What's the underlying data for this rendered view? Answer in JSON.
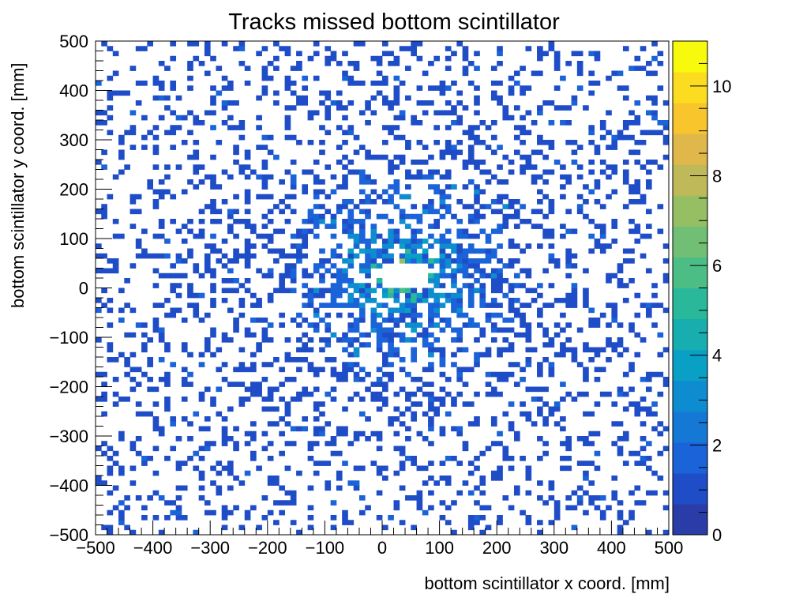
{
  "chart_data": {
    "type": "heatmap",
    "title": "Tracks missed bottom scintillator",
    "xlabel": "bottom scintillator x coord. [mm]",
    "ylabel": "bottom scintillator y coord. [mm]",
    "xlim": [
      -500,
      500
    ],
    "ylim": [
      -500,
      500
    ],
    "bins": {
      "nx": 100,
      "ny": 100,
      "bin_width_mm": 10
    },
    "empty_region": {
      "x": [
        0,
        80
      ],
      "y": [
        0,
        50
      ]
    },
    "x_ticks": [
      "−500",
      "−400",
      "−300",
      "−200",
      "−100",
      "0",
      "100",
      "200",
      "300",
      "400",
      "500"
    ],
    "y_ticks": [
      "−500",
      "−400",
      "−300",
      "−200",
      "−100",
      "0",
      "100",
      "200",
      "300",
      "400",
      "500"
    ],
    "colorbar": {
      "range": [
        0,
        11
      ],
      "ticks": [
        "0",
        "2",
        "4",
        "6",
        "8",
        "10"
      ],
      "palette": [
        "#2a3ca8",
        "#1f4dc7",
        "#1a63d8",
        "#1578d4",
        "#0d8dcf",
        "#0aa0c6",
        "#18aeb0",
        "#2ab89b",
        "#4dbd86",
        "#70bf74",
        "#96be63",
        "#bfb959",
        "#e0b74b",
        "#f8c52c",
        "#fbdc20",
        "#f8fa0d"
      ]
    },
    "distribution": "counts peak (~6-11) in a ring around the empty central region and fall off with radius; most outer bins hold 1-2 counts",
    "grid": false,
    "legend": "none"
  }
}
